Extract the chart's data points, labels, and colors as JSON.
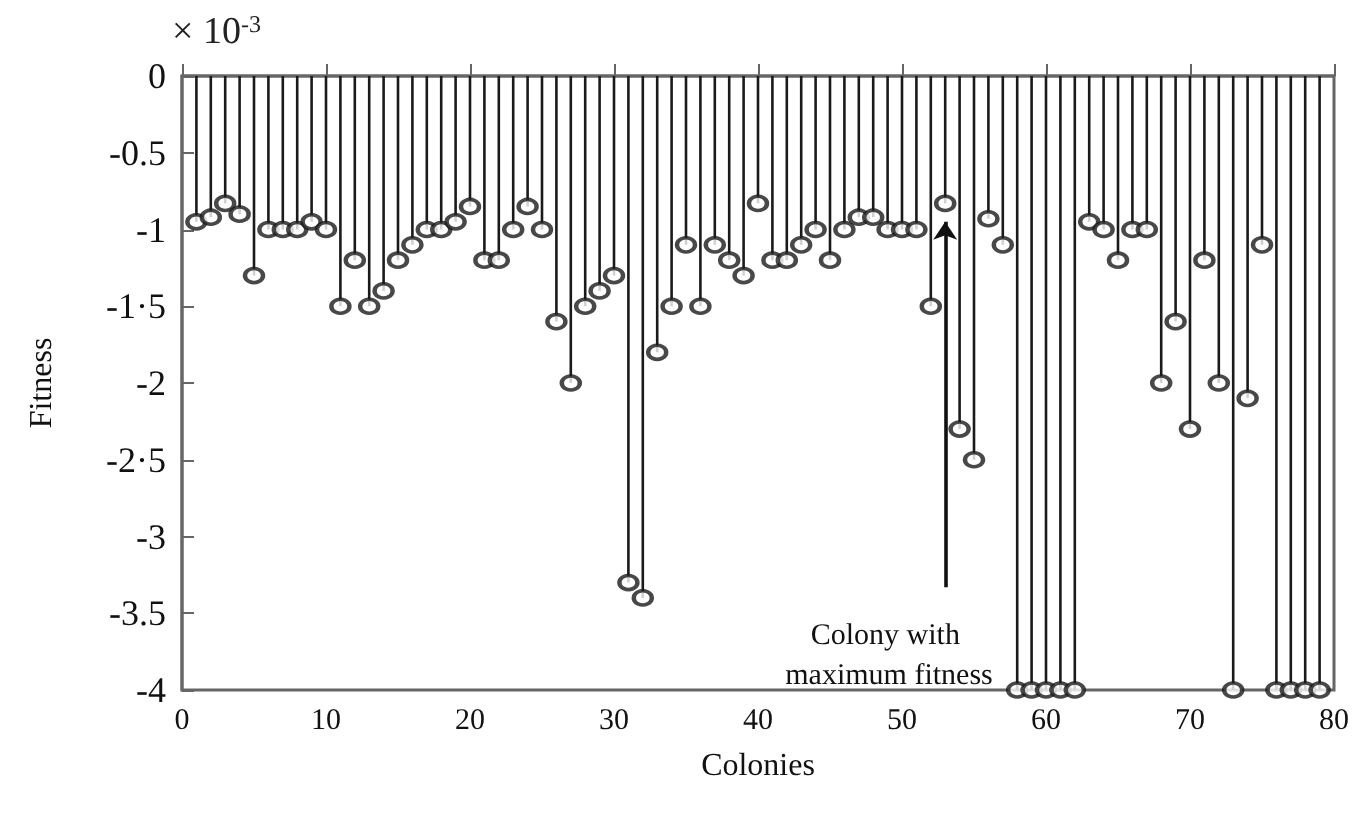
{
  "chart_data": {
    "type": "lollipop",
    "xlabel": "Colonies",
    "ylabel": "Fitness",
    "x": [
      1,
      2,
      3,
      4,
      5,
      6,
      7,
      8,
      9,
      10,
      11,
      12,
      13,
      14,
      15,
      16,
      17,
      18,
      19,
      20,
      21,
      22,
      23,
      24,
      25,
      26,
      27,
      28,
      29,
      30,
      31,
      32,
      33,
      34,
      35,
      36,
      37,
      38,
      39,
      40,
      41,
      42,
      43,
      44,
      45,
      46,
      47,
      48,
      49,
      50,
      51,
      52,
      53,
      54,
      55,
      56,
      57,
      58,
      59,
      60,
      61,
      62,
      63,
      64,
      65,
      66,
      67,
      68,
      69,
      70,
      71,
      72,
      73,
      74,
      75,
      76,
      77,
      78,
      79
    ],
    "values": [
      -0.95,
      -0.92,
      -0.83,
      -0.9,
      -1.3,
      -1.0,
      -1.0,
      -1.0,
      -0.95,
      -1.0,
      -1.5,
      -1.2,
      -1.5,
      -1.4,
      -1.2,
      -1.1,
      -1.0,
      -1.0,
      -0.95,
      -0.85,
      -1.2,
      -1.2,
      -1.0,
      -0.85,
      -1.0,
      -1.6,
      -2.0,
      -1.5,
      -1.4,
      -1.3,
      -3.3,
      -3.4,
      -1.8,
      -1.5,
      -1.1,
      -1.5,
      -1.1,
      -1.2,
      -1.3,
      -0.83,
      -1.2,
      -1.2,
      -1.1,
      -1.0,
      -1.2,
      -1.0,
      -0.92,
      -0.92,
      -1.0,
      -1.0,
      -1.0,
      -1.5,
      -0.83,
      -2.3,
      -2.5,
      -0.93,
      -1.1,
      -4,
      -4,
      -4,
      -4,
      -4,
      -0.95,
      -1.0,
      -1.2,
      -1.0,
      -1.0,
      -2.0,
      -1.6,
      -2.3,
      -1.2,
      -2.0,
      -4,
      -2.1,
      -1.1,
      -4,
      -4,
      -4,
      -4
    ],
    "color": "#1a1a1a",
    "marker": "circle",
    "xlim": [
      0,
      80
    ],
    "xticks": [
      0,
      10,
      20,
      30,
      40,
      50,
      60,
      70,
      80
    ],
    "ylim": [
      -4,
      0
    ],
    "yticks": [
      0,
      {
        "value": -0.5,
        "label": "-0.5"
      },
      -1,
      {
        "value": -1.5,
        "label": "-1·5"
      },
      -2,
      {
        "value": -2.5,
        "label": "-2·5"
      },
      -3,
      {
        "value": -3.5,
        "label": "-3.5"
      },
      -4
    ],
    "annotations": [
      "× 10$^{-3}$",
      {
        "text": "Colony with maximum fitness",
        "x": 53,
        "y": -0.83
      }
    ]
  }
}
